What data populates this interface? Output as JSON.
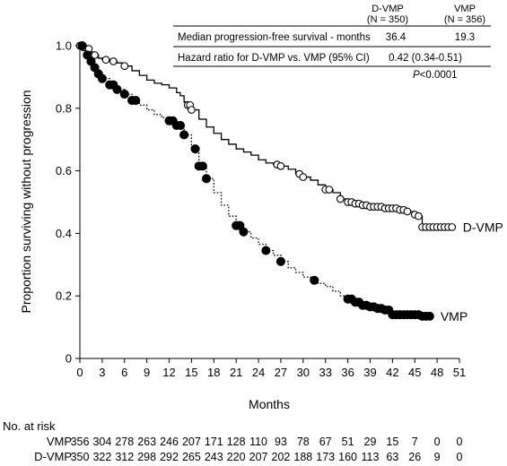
{
  "chart_data": {
    "type": "line",
    "title": "",
    "xlabel": "Months",
    "ylabel": "Proportion surviving without progression",
    "xlim": [
      0,
      51
    ],
    "ylim": [
      0,
      1.0
    ],
    "xticks": [
      "0",
      "3",
      "6",
      "9",
      "12",
      "15",
      "18",
      "21",
      "24",
      "27",
      "30",
      "33",
      "36",
      "39",
      "42",
      "45",
      "48",
      "51"
    ],
    "yticks": [
      "0",
      "0.2",
      "0.4",
      "0.6",
      "0.8",
      "1.0"
    ],
    "grid": false,
    "series": [
      {
        "name": "D-VMP",
        "style": "solid",
        "marker": "open-circle",
        "x": [
          0,
          0.5,
          1,
          1.5,
          2,
          2.5,
          3,
          4,
          5,
          6,
          7,
          8,
          9,
          10,
          11,
          12,
          13,
          13.5,
          14,
          14.5,
          15,
          16,
          17,
          18,
          19,
          20,
          21,
          22,
          23,
          24,
          25,
          26,
          27,
          28,
          29,
          30,
          31,
          32,
          33,
          34,
          35,
          36,
          37,
          38,
          39,
          40,
          41,
          42,
          43,
          44,
          45,
          45.5,
          46,
          47,
          48,
          49,
          50
        ],
        "y": [
          1.0,
          0.995,
          0.99,
          0.98,
          0.97,
          0.96,
          0.955,
          0.95,
          0.945,
          0.935,
          0.92,
          0.905,
          0.89,
          0.88,
          0.875,
          0.865,
          0.85,
          0.84,
          0.82,
          0.81,
          0.795,
          0.765,
          0.74,
          0.72,
          0.7,
          0.685,
          0.67,
          0.66,
          0.65,
          0.635,
          0.625,
          0.62,
          0.615,
          0.605,
          0.59,
          0.58,
          0.57,
          0.555,
          0.54,
          0.53,
          0.51,
          0.5,
          0.495,
          0.49,
          0.485,
          0.485,
          0.48,
          0.48,
          0.475,
          0.47,
          0.46,
          0.455,
          0.42,
          0.42,
          0.42,
          0.42,
          0.42
        ],
        "markers_x": [
          0,
          0.5,
          1.2,
          2,
          3.5,
          4.5,
          6,
          14.5,
          14.8,
          15,
          26.5,
          27,
          29.5,
          30,
          33,
          33.5,
          35,
          36,
          36.5,
          37,
          37.5,
          38,
          38.5,
          39,
          39.5,
          40,
          40.5,
          41,
          41.5,
          42,
          42.5,
          43,
          43.5,
          44,
          45,
          45.5,
          46,
          46.5,
          47,
          47.5,
          48,
          48.5,
          49,
          49.5,
          50
        ],
        "end_label": "D-VMP"
      },
      {
        "name": "VMP",
        "style": "dotted",
        "marker": "filled-circle",
        "x": [
          0,
          0.5,
          1,
          1.5,
          2,
          2.5,
          3,
          4,
          5,
          6,
          7,
          8,
          9,
          10,
          11,
          12,
          13,
          14,
          15,
          16,
          17,
          18,
          19,
          20,
          21,
          22,
          23,
          24,
          25,
          26,
          27,
          28,
          29,
          30,
          31,
          32,
          33,
          34,
          35,
          36,
          37,
          38,
          39,
          40,
          41,
          42,
          43,
          44,
          45,
          46,
          47
        ],
        "y": [
          1.0,
          0.985,
          0.97,
          0.95,
          0.93,
          0.91,
          0.895,
          0.875,
          0.86,
          0.845,
          0.825,
          0.81,
          0.795,
          0.78,
          0.77,
          0.76,
          0.745,
          0.715,
          0.67,
          0.615,
          0.575,
          0.53,
          0.49,
          0.455,
          0.425,
          0.405,
          0.385,
          0.365,
          0.345,
          0.33,
          0.31,
          0.29,
          0.275,
          0.26,
          0.25,
          0.24,
          0.23,
          0.215,
          0.2,
          0.19,
          0.18,
          0.17,
          0.165,
          0.16,
          0.155,
          0.14,
          0.14,
          0.14,
          0.14,
          0.135,
          0.135
        ],
        "markers_x": [
          0.3,
          1,
          1.5,
          2,
          2.5,
          3,
          4,
          4.5,
          5,
          6,
          7,
          7.5,
          12,
          12.5,
          13,
          13.5,
          14,
          15.5,
          16,
          16.5,
          17,
          21,
          21.5,
          22,
          25,
          27,
          31.5,
          36,
          36.5,
          37,
          37.5,
          38,
          38.5,
          39,
          39.5,
          40,
          40.5,
          41,
          41.5,
          42,
          42.5,
          43,
          43.5,
          44,
          44.5,
          45,
          45.5,
          46,
          46.5,
          47
        ],
        "end_label": "VMP"
      }
    ],
    "annotations": {
      "col_headers": [
        {
          "name": "D-VMP",
          "n": "(N = 350)"
        },
        {
          "name": "VMP",
          "n": "(N = 356)"
        }
      ],
      "rows": [
        {
          "label": "Median progression-free survival - months",
          "dvmp": "36.4",
          "vmp": "19.3"
        },
        {
          "label": "Hazard ratio for D-VMP vs. VMP (95% CI)",
          "value": "0.42 (0.34-0.51)"
        }
      ],
      "p_prefix": "P",
      "p_value": "<0.0001"
    },
    "at_risk": {
      "title": "No. at risk",
      "rows": [
        {
          "label": "VMP",
          "values": [
            "356",
            "304",
            "278",
            "263",
            "246",
            "207",
            "171",
            "128",
            "110",
            "93",
            "78",
            "67",
            "51",
            "29",
            "15",
            "7",
            "0",
            "0"
          ]
        },
        {
          "label": "D-VMP",
          "values": [
            "350",
            "322",
            "312",
            "298",
            "292",
            "265",
            "243",
            "220",
            "207",
            "202",
            "188",
            "173",
            "160",
            "113",
            "63",
            "26",
            "9",
            "0"
          ]
        }
      ]
    }
  }
}
